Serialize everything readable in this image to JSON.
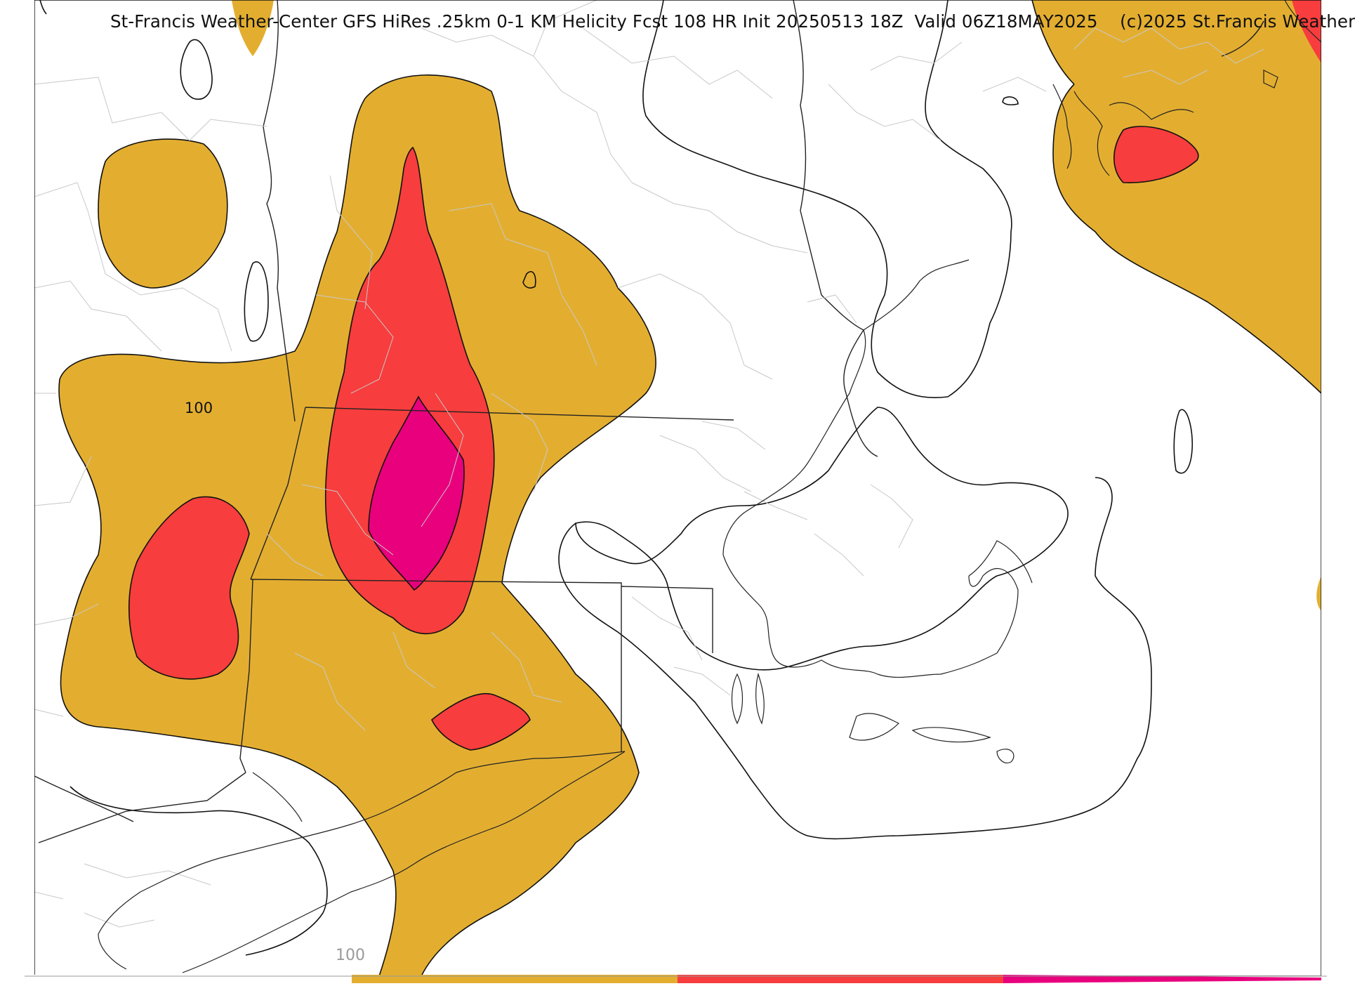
{
  "map": {
    "title": "St-Francis Weather-Center GFS HiRes .25km 0-1 KM Helicity Fcst 108 HR Init 20250513 18Z  Valid 06Z18MAY2025    (c)2025 St.Francis Weather",
    "contour_label": "100",
    "colorbar": {
      "label": "100",
      "colors": [
        "#ffffff",
        "#e3ae30",
        "#f73d3d",
        "#e8007d"
      ]
    },
    "fill_colors": {
      "level_1": "#e3ae30",
      "level_2": "#f73d3d",
      "level_3": "#e8007d"
    }
  }
}
